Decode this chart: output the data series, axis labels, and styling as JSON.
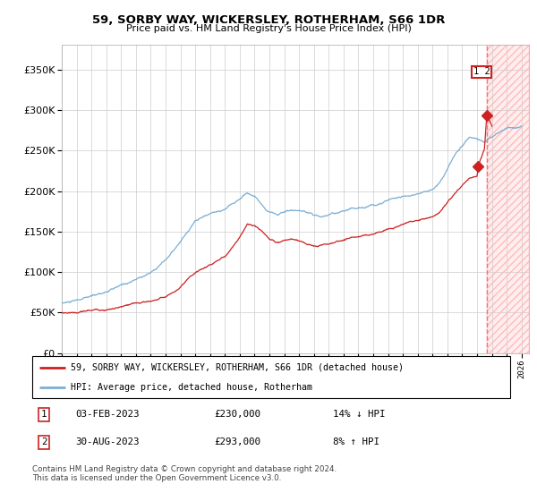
{
  "title": "59, SORBY WAY, WICKERSLEY, ROTHERHAM, S66 1DR",
  "subtitle": "Price paid vs. HM Land Registry's House Price Index (HPI)",
  "hpi_label": "HPI: Average price, detached house, Rotherham",
  "property_label": "59, SORBY WAY, WICKERSLEY, ROTHERHAM, S66 1DR (detached house)",
  "sale1_date": "03-FEB-2023",
  "sale1_price": 230000,
  "sale1_note": "14% ↓ HPI",
  "sale1_year": 2023.09,
  "sale2_date": "30-AUG-2023",
  "sale2_price": 293000,
  "sale2_note": "8% ↑ HPI",
  "sale2_year": 2023.66,
  "footer": "Contains HM Land Registry data © Crown copyright and database right 2024.\nThis data is licensed under the Open Government Licence v3.0.",
  "hpi_color": "#7bafd4",
  "property_color": "#cc2222",
  "dashed_color": "#ee8888",
  "ylim": [
    0,
    380000
  ],
  "xlim_start": 1995.0,
  "xlim_end": 2026.5
}
